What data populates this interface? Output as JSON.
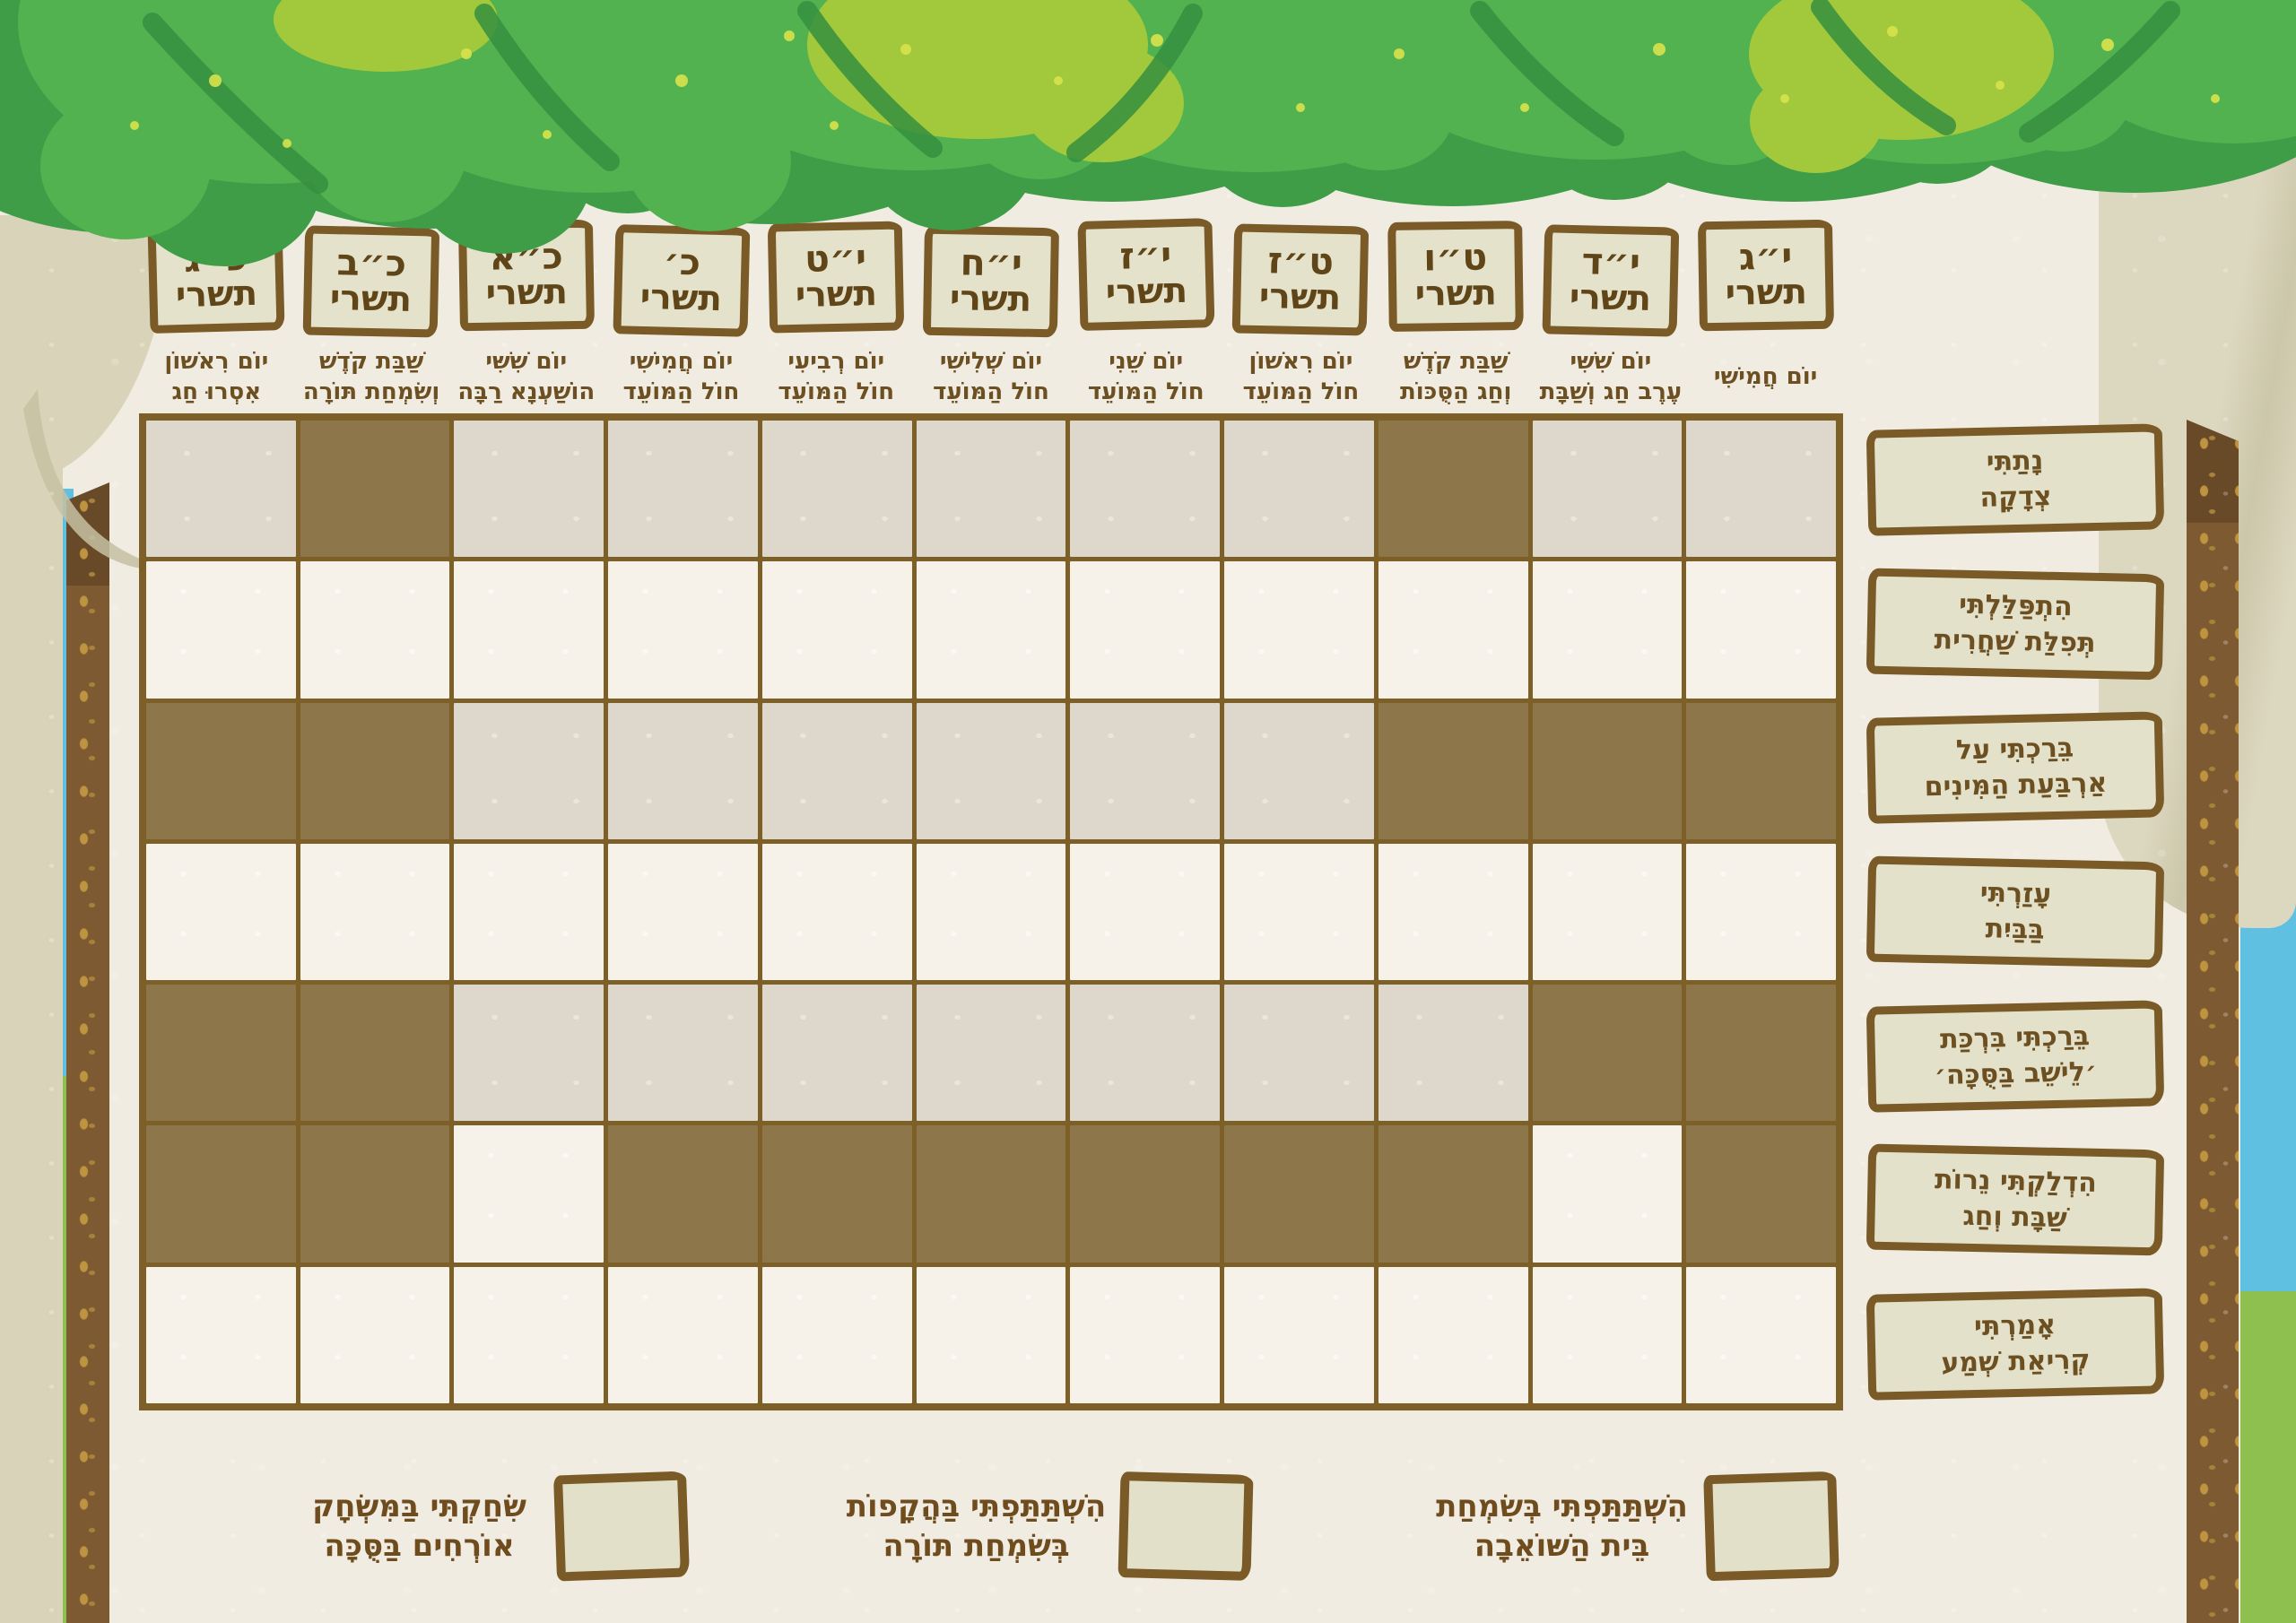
{
  "chart": {
    "columns": [
      {
        "day": "כ״ג",
        "month": "תשרי",
        "weekday": [
          "יוֹם רִאשׁוֹן",
          "אִסְרוּ חַג"
        ]
      },
      {
        "day": "כ״ב",
        "month": "תשרי",
        "weekday": [
          "שַׁבַּת קֹדֶשׁ",
          "וְשִׂמְחַת תּוֹרָה"
        ]
      },
      {
        "day": "כ״א",
        "month": "תשרי",
        "weekday": [
          "יוֹם שִׁשִּׁי",
          "הוֹשַׁעְנָא רַבָּה"
        ]
      },
      {
        "day": "כ׳",
        "month": "תשרי",
        "weekday": [
          "יוֹם חֲמִישִׁי",
          "חוֹל הַמּוֹעֵד"
        ]
      },
      {
        "day": "י״ט",
        "month": "תשרי",
        "weekday": [
          "יוֹם רְבִיעִי",
          "חוֹל הַמּוֹעֵד"
        ]
      },
      {
        "day": "י״ח",
        "month": "תשרי",
        "weekday": [
          "יוֹם שְׁלִישִׁי",
          "חוֹל הַמּוֹעֵד"
        ]
      },
      {
        "day": "י״ז",
        "month": "תשרי",
        "weekday": [
          "יוֹם שֵׁנִי",
          "חוֹל הַמּוֹעֵד"
        ]
      },
      {
        "day": "ט״ז",
        "month": "תשרי",
        "weekday": [
          "יוֹם רִאשׁוֹן",
          "חוֹל הַמּוֹעֵד"
        ]
      },
      {
        "day": "ט״ו",
        "month": "תשרי",
        "weekday": [
          "שַׁבַּת קֹדֶשׁ",
          "וְחַג הַסֻּכּוֹת"
        ]
      },
      {
        "day": "י״ד",
        "month": "תשרי",
        "weekday": [
          "יוֹם שִׁשִּׁי",
          "עֶרֶב חַג וְשַׁבָּת"
        ]
      },
      {
        "day": "י״ג",
        "month": "תשרי",
        "weekday": [
          "יוֹם חֲמִישִׁי"
        ]
      }
    ],
    "rows": [
      {
        "label": [
          "נָתַתִּי",
          "צְדָקָה"
        ],
        "cells": [
          "shaded",
          "na",
          "shaded",
          "shaded",
          "shaded",
          "shaded",
          "shaded",
          "shaded",
          "na",
          "shaded",
          "shaded"
        ]
      },
      {
        "label": [
          "הִתְפַּלַּלְתִּי",
          "תְּפִלַּת שַׁחֲרִית"
        ],
        "cells": [
          "open",
          "open",
          "open",
          "open",
          "open",
          "open",
          "open",
          "open",
          "open",
          "open",
          "open"
        ]
      },
      {
        "label": [
          "בֵּרַכְתִּי עַל",
          "אַרְבַּעַת הַמִּינִים"
        ],
        "cells": [
          "na",
          "na",
          "shaded",
          "shaded",
          "shaded",
          "shaded",
          "shaded",
          "shaded",
          "na",
          "na",
          "na"
        ]
      },
      {
        "label": [
          "עָזַרְתִּי",
          "בַּבַּיִת"
        ],
        "cells": [
          "open",
          "open",
          "open",
          "open",
          "open",
          "open",
          "open",
          "open",
          "open",
          "open",
          "open"
        ]
      },
      {
        "label": [
          "בֵּרַכְתִּי בִּרְכַּת",
          "׳לֵישֵׁב בַּסֻּכָּה׳"
        ],
        "cells": [
          "na",
          "na",
          "shaded",
          "shaded",
          "shaded",
          "shaded",
          "shaded",
          "shaded",
          "shaded",
          "na",
          "na"
        ]
      },
      {
        "label": [
          "הִדְלַקְתִּי נֵרוֹת",
          "שַׁבָּת וְחַג"
        ],
        "cells": [
          "na",
          "na",
          "open",
          "na",
          "na",
          "na",
          "na",
          "na",
          "na",
          "open",
          "na"
        ]
      },
      {
        "label": [
          "אָמַרְתִּי",
          "קְרִיאַת שְׁמַע"
        ],
        "cells": [
          "open",
          "open",
          "open",
          "open",
          "open",
          "open",
          "open",
          "open",
          "open",
          "open",
          "open"
        ]
      }
    ],
    "footer_items": [
      {
        "label": [
          "שִׂחַקְתִּי בַּמִּשְׂחָק",
          "אוֹרְחִים בַּסֻּכָּה"
        ]
      },
      {
        "label": [
          "הִשְׁתַּתַּפְתִּי בַּהֲקָפוֹת",
          "בְּשִׂמְחַת תּוֹרָה"
        ]
      },
      {
        "label": [
          "הִשְׁתַּתַּפְתִּי בְּשִׂמְחַת",
          "בֵּית הַשּׁוֹאֵבָה"
        ]
      }
    ]
  },
  "colors": {
    "cell_blocked_brown": "#8d764a",
    "cell_shaded_gray": "#ded8cc",
    "cell_open_cream": "#f6f1e9",
    "grid_line_brown": "#7d5f28",
    "sign_fill": "#e5e2cb",
    "sign_border": "#7a5a26",
    "text_brown": "#6d5022",
    "leaf_green_mid": "#52b250",
    "leaf_green_dark": "#3f9c47",
    "leaf_yellow_green": "#a2c93c",
    "sky_blue": "#5fc0e2",
    "grass_green": "#8dc04f",
    "pole_brown": "#7d5a31",
    "curtain_beige": "#d9d4b9",
    "background": "#f1ece2"
  }
}
